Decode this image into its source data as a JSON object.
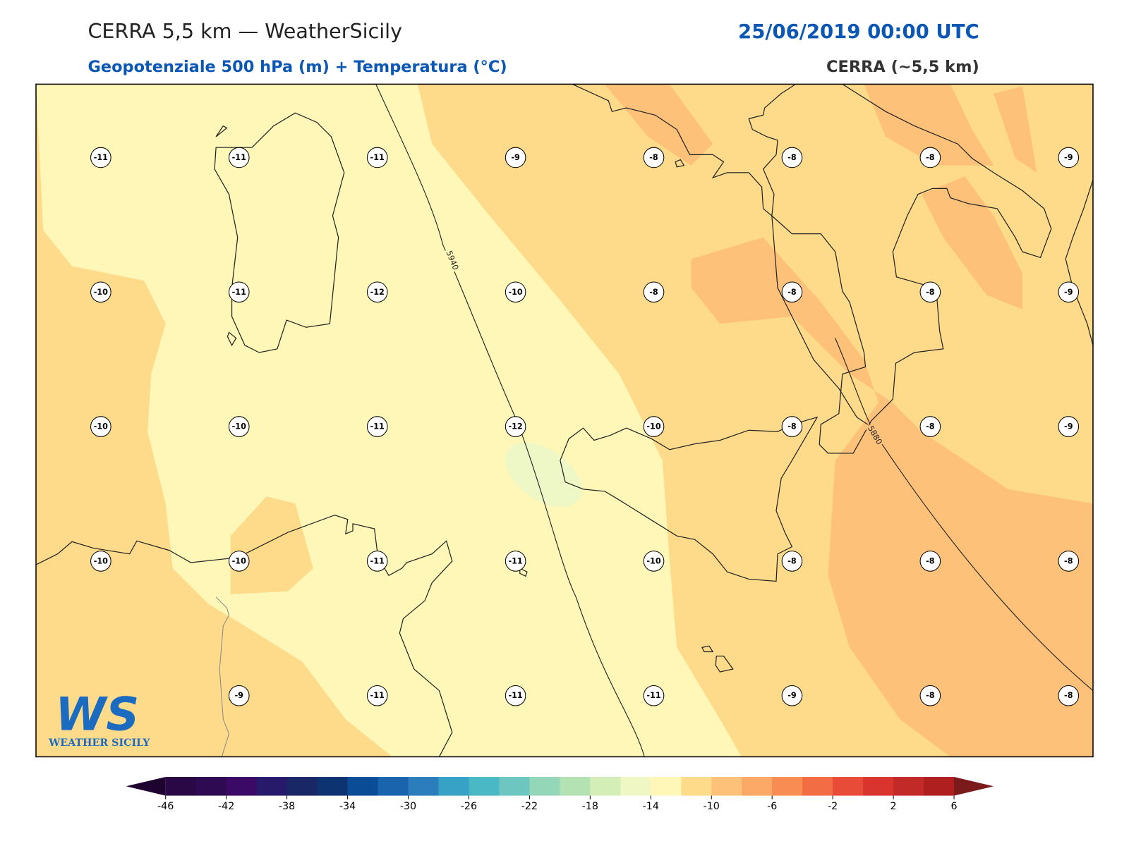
{
  "header": {
    "title": "CERRA 5,5 km — WeatherSicily",
    "date": "25/06/2019 00:00 UTC",
    "subtitle": "Geopotenziale 500 hPa (m) + Temperatura (°C)",
    "source": "CERRA (~5,5 km)"
  },
  "map": {
    "temperature_rows": [
      [
        -11,
        -11,
        -11,
        -9,
        -8,
        -8,
        -8,
        -9
      ],
      [
        -10,
        -11,
        -12,
        -10,
        -8,
        -8,
        -8,
        -9
      ],
      [
        -10,
        -10,
        -11,
        -12,
        -10,
        -8,
        -8,
        -9
      ],
      [
        -10,
        -10,
        -11,
        -11,
        -10,
        -8,
        -8,
        -8
      ],
      [
        null,
        -9,
        -11,
        -11,
        -11,
        -9,
        -8,
        -8
      ]
    ],
    "contours": [
      {
        "label": "5940"
      },
      {
        "label": "5880"
      }
    ],
    "logo": {
      "mark": "WS",
      "text": "WEATHER SICILY"
    }
  },
  "colorbar": {
    "ticks": [
      -46,
      -42,
      -38,
      -34,
      -30,
      -26,
      -22,
      -18,
      -14,
      -10,
      -6,
      -2,
      2,
      6
    ],
    "colors": [
      "#2a0845",
      "#2e0a52",
      "#3a0a66",
      "#281a6b",
      "#1a2766",
      "#0d3470",
      "#0a4d96",
      "#1a64ae",
      "#2b7dbb",
      "#37a1c6",
      "#4bb8c6",
      "#6ec6c0",
      "#93d6b8",
      "#b5e2b2",
      "#d4eeb8",
      "#eff8c4",
      "#fff7b8",
      "#fedb8a",
      "#fdc17a",
      "#fca866",
      "#f88c53",
      "#f26d44",
      "#e84c38",
      "#d9342e",
      "#c22a27",
      "#b01f1f"
    ],
    "under": "#1e0330",
    "over": "#7a1a1a"
  }
}
